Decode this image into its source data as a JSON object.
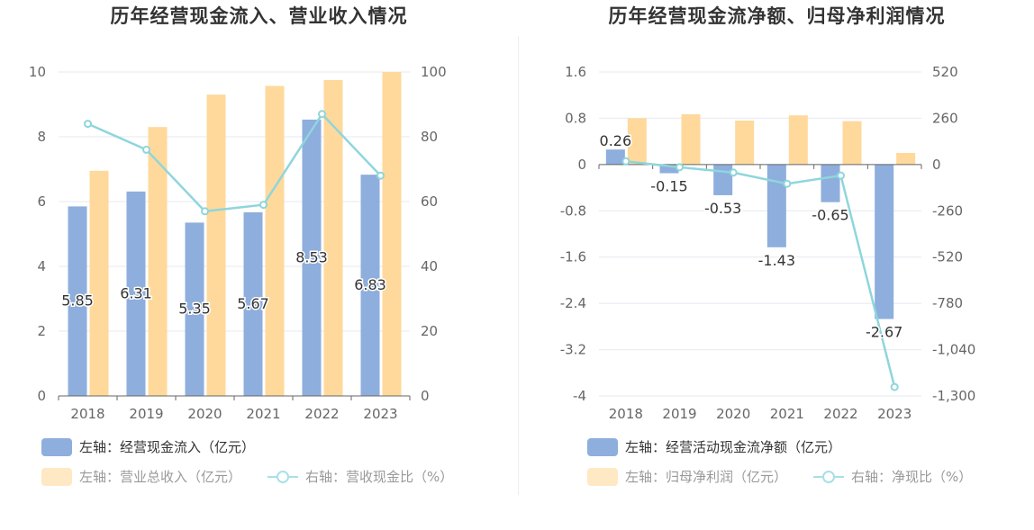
{
  "left": {
    "title": "历年经营现金流入、营业收入情况",
    "chart_data": {
      "type": "bar",
      "categories": [
        "2018",
        "2019",
        "2020",
        "2021",
        "2022",
        "2023"
      ],
      "y_left": {
        "range": [
          0,
          10
        ],
        "ticks": [
          0,
          2,
          4,
          6,
          8,
          10
        ]
      },
      "y_right": {
        "range": [
          0,
          100
        ],
        "ticks": [
          0,
          20,
          40,
          60,
          80,
          100
        ]
      },
      "series": [
        {
          "name": "左轴：经营现金流入（亿元）",
          "type": "bar",
          "axis": "left",
          "color": "#8eaedd",
          "values": [
            5.85,
            6.31,
            5.35,
            5.67,
            8.53,
            6.83
          ],
          "labels": [
            "5.85",
            "6.31",
            "5.35",
            "5.67",
            "8.53",
            "6.83"
          ]
        },
        {
          "name": "左轴：营业总收入（亿元）",
          "type": "bar",
          "axis": "left",
          "color": "#ffd99b",
          "values": [
            6.95,
            8.3,
            9.3,
            9.57,
            9.75,
            10.0
          ]
        },
        {
          "name": "右轴：营收现金比（%）",
          "type": "line",
          "axis": "right",
          "color": "#8ed6dc",
          "values": [
            84,
            76,
            57,
            59,
            87,
            68
          ]
        }
      ]
    }
  },
  "right": {
    "title": "历年经营现金流净额、归母净利润情况",
    "chart_data": {
      "type": "bar",
      "categories": [
        "2018",
        "2019",
        "2020",
        "2021",
        "2022",
        "2023"
      ],
      "y_left": {
        "range": [
          -4,
          1.6
        ],
        "ticks": [
          -4,
          -3.2,
          -2.4,
          -1.6,
          -0.8,
          0,
          0.8,
          1.6
        ],
        "tick_labels": [
          "-4",
          "-3.2",
          "-2.4",
          "-1.6",
          "-0.8",
          "0",
          "0.8",
          "1.6"
        ]
      },
      "y_right": {
        "range": [
          -1300,
          520
        ],
        "ticks": [
          -1300,
          -1040,
          -780,
          -520,
          -260,
          0,
          260,
          520
        ],
        "tick_labels": [
          "-1,300",
          "-1,040",
          "-780",
          "-520",
          "-260",
          "0",
          "260",
          "520"
        ]
      },
      "series": [
        {
          "name": "左轴：经营活动现金流净额（亿元）",
          "type": "bar",
          "axis": "left",
          "color": "#8eaedd",
          "values": [
            0.26,
            -0.15,
            -0.53,
            -1.43,
            -0.65,
            -2.67
          ],
          "labels": [
            "0.26",
            "-0.15",
            "-0.53",
            "-1.43",
            "-0.65",
            "-2.67"
          ]
        },
        {
          "name": "左轴：归母净利润（亿元）",
          "type": "bar",
          "axis": "left",
          "color": "#ffd99b",
          "values": [
            0.8,
            0.87,
            0.76,
            0.85,
            0.75,
            0.2
          ]
        },
        {
          "name": "右轴：净现比（%）",
          "type": "line",
          "axis": "right",
          "color": "#8ed6dc",
          "values": [
            18,
            -15,
            -45,
            -108,
            -62,
            -1250
          ]
        }
      ]
    }
  }
}
